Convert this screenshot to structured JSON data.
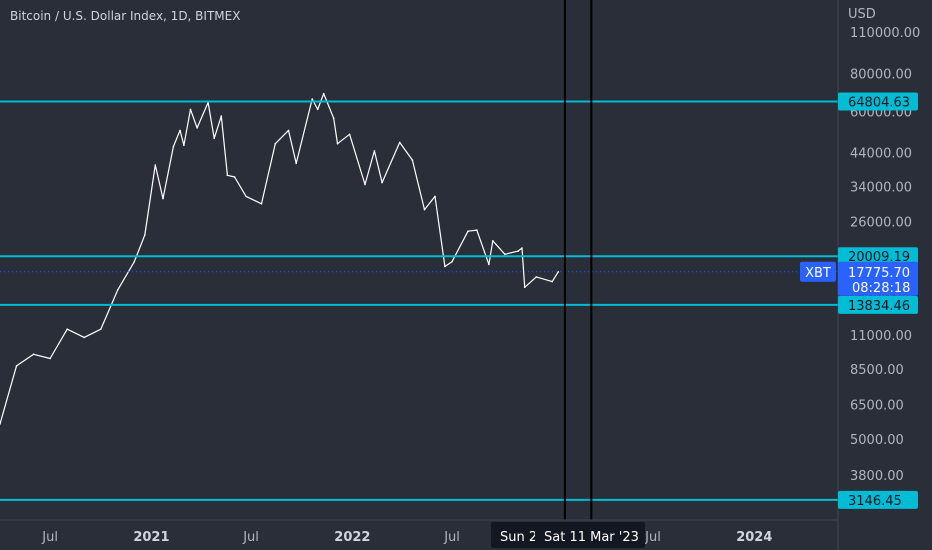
{
  "chart_data": {
    "type": "line",
    "title": "Bitcoin / U.S. Dollar Index, 1D, BITMEX",
    "currency": "USD",
    "scale": "log",
    "ylim": [
      2700,
      140000
    ],
    "xlim": [
      "2020-04-01",
      "2024-06-01"
    ],
    "y_ticks": [
      110000,
      80000,
      60000,
      44000,
      34000,
      26000,
      20000,
      15000,
      11000,
      8500,
      6500,
      5000,
      3800
    ],
    "y_tick_labels": [
      "110000.00",
      "80000.00",
      "60000.00",
      "44000.00",
      "34000.00",
      "26000.00",
      "20000.00",
      "15000.00",
      "11000.00",
      "8500.00",
      "6500.00",
      "5000.00",
      "3800.00"
    ],
    "x_ticks": [
      {
        "date": "2020-07-01",
        "label": "Jul",
        "bold": false
      },
      {
        "date": "2021-01-01",
        "label": "2021",
        "bold": true
      },
      {
        "date": "2021-07-01",
        "label": "Jul",
        "bold": false
      },
      {
        "date": "2022-01-01",
        "label": "2022",
        "bold": true
      },
      {
        "date": "2022-07-01",
        "label": "Jul",
        "bold": false
      },
      {
        "date": "2023-07-01",
        "label": "Jul",
        "bold": false
      },
      {
        "date": "2024-01-01",
        "label": "2024",
        "bold": true
      }
    ],
    "series": [
      {
        "points": [
          [
            "2020-04-01",
            5600
          ],
          [
            "2020-05-01",
            8700
          ],
          [
            "2020-06-01",
            9500
          ],
          [
            "2020-07-01",
            9200
          ],
          [
            "2020-08-01",
            11500
          ],
          [
            "2020-09-01",
            10800
          ],
          [
            "2020-10-01",
            11500
          ],
          [
            "2020-11-01",
            15500
          ],
          [
            "2020-12-01",
            19200
          ],
          [
            "2020-12-20",
            23500
          ],
          [
            "2021-01-08",
            40000
          ],
          [
            "2021-01-22",
            31000
          ],
          [
            "2021-02-10",
            46000
          ],
          [
            "2021-02-22",
            52000
          ],
          [
            "2021-03-01",
            46500
          ],
          [
            "2021-03-13",
            61000
          ],
          [
            "2021-03-25",
            53000
          ],
          [
            "2021-04-14",
            64300
          ],
          [
            "2021-04-25",
            49000
          ],
          [
            "2021-05-08",
            58000
          ],
          [
            "2021-05-19",
            37000
          ],
          [
            "2021-06-01",
            36500
          ],
          [
            "2021-06-22",
            31500
          ],
          [
            "2021-07-20",
            29800
          ],
          [
            "2021-08-14",
            47000
          ],
          [
            "2021-09-07",
            52000
          ],
          [
            "2021-09-21",
            40500
          ],
          [
            "2021-10-20",
            66000
          ],
          [
            "2021-10-30",
            61000
          ],
          [
            "2021-11-10",
            68800
          ],
          [
            "2021-11-28",
            57000
          ],
          [
            "2021-12-05",
            47000
          ],
          [
            "2021-12-27",
            50500
          ],
          [
            "2022-01-24",
            34500
          ],
          [
            "2022-02-10",
            44500
          ],
          [
            "2022-02-24",
            35000
          ],
          [
            "2022-03-28",
            47500
          ],
          [
            "2022-04-20",
            41500
          ],
          [
            "2022-05-12",
            28500
          ],
          [
            "2022-05-31",
            31500
          ],
          [
            "2022-06-18",
            18500
          ],
          [
            "2022-07-01",
            19200
          ],
          [
            "2022-07-30",
            24200
          ],
          [
            "2022-08-15",
            24400
          ],
          [
            "2022-09-06",
            18800
          ],
          [
            "2022-09-13",
            22500
          ],
          [
            "2022-10-05",
            20300
          ],
          [
            "2022-10-29",
            20800
          ],
          [
            "2022-11-05",
            21300
          ],
          [
            "2022-11-10",
            15800
          ],
          [
            "2022-12-01",
            17100
          ],
          [
            "2022-12-30",
            16500
          ],
          [
            "2023-01-10",
            17775.7
          ]
        ]
      }
    ],
    "horizontal_levels": [
      {
        "value": 64804.63,
        "label": "64804.63"
      },
      {
        "value": 20009.19,
        "label": "20009.19"
      },
      {
        "value": 13834.46,
        "label": "13834.46"
      },
      {
        "value": 3146.45,
        "label": "3146.45"
      }
    ],
    "current_price": {
      "symbol": "XBT",
      "value": 17775.7,
      "label": "17775.70",
      "countdown": "08:28:18"
    },
    "vertical_markers": [
      {
        "date": "2023-01-22",
        "label": "Sun 2"
      },
      {
        "date": "2023-03-11",
        "label": "Sat 11 Mar '23"
      }
    ],
    "colors": {
      "background": "#2a2e39",
      "price": "#ffffff",
      "level": "#00bcd4",
      "trendline": "#000000",
      "red_marks": "#e53935",
      "blue_zone": "#3f51b5",
      "current_price": "#2962ff",
      "axis_text": "#b2b5be",
      "axis_line": "#434651",
      "current_line": "#2962ff"
    }
  }
}
